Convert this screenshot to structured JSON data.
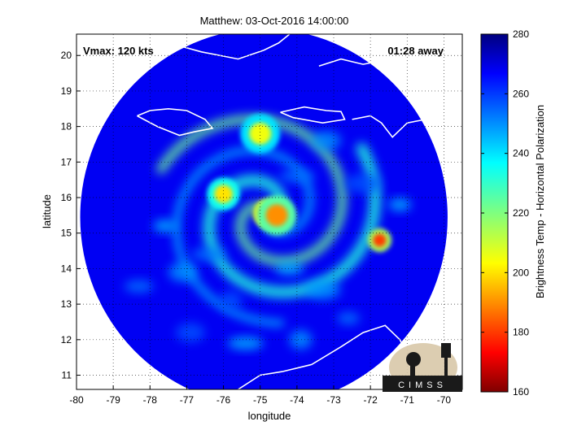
{
  "chart_data": {
    "type": "heatmap",
    "title": "Matthew: 03-Oct-2016 14:00:00",
    "xlabel": "longitude",
    "ylabel": "latitude",
    "xlim": [
      -80,
      -69.5
    ],
    "ylim": [
      10.6,
      20.6
    ],
    "x_ticks": [
      -80,
      -79,
      -78,
      -77,
      -76,
      -75,
      -74,
      -73,
      -72,
      -71,
      -70
    ],
    "y_ticks": [
      11,
      12,
      13,
      14,
      15,
      16,
      17,
      18,
      19,
      20
    ],
    "grid": true,
    "annotations": {
      "vmax": "Vmax: 120 kts",
      "time_away": "01:28 away"
    },
    "colorbar": {
      "label": "Brightness Temp - Horizontal Polarization",
      "range": [
        160,
        280
      ],
      "ticks": [
        160,
        180,
        200,
        220,
        240,
        260,
        280
      ],
      "colormap": "jet"
    },
    "swath": {
      "center": [
        -74.9,
        15.45
      ],
      "radius_deg": 5.0,
      "background_value": 268
    },
    "features": [
      {
        "name": "eye",
        "lon": -74.8,
        "lat": 15.55,
        "value": 172,
        "radius": 0.22
      },
      {
        "name": "eyewall",
        "lon": -74.55,
        "lat": 15.5,
        "value": 190,
        "radius": 0.3
      },
      {
        "name": "convective-cell",
        "lon": -71.75,
        "lat": 14.8,
        "value": 180,
        "radius": 0.18
      },
      {
        "name": "band-north",
        "lon": -75.0,
        "lat": 17.8,
        "value": 205,
        "radius": 0.3
      },
      {
        "name": "band-west",
        "lon": -76.0,
        "lat": 16.1,
        "value": 200,
        "radius": 0.25
      }
    ]
  },
  "logo": {
    "text": "CIMSS"
  }
}
